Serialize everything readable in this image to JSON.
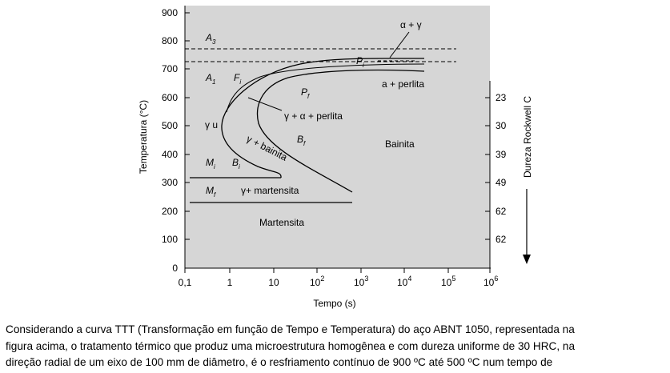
{
  "figure": {
    "colors": {
      "plot_bg": "#d6d6d6",
      "lines": "#000000"
    },
    "x_axis": {
      "label": "Tempo (s)",
      "scale": "log",
      "ticks": [
        {
          "base": "0,1",
          "exp": ""
        },
        {
          "base": "1",
          "exp": ""
        },
        {
          "base": "10",
          "exp": ""
        },
        {
          "base": "10",
          "exp": "2"
        },
        {
          "base": "10",
          "exp": "3"
        },
        {
          "base": "10",
          "exp": "4"
        },
        {
          "base": "10",
          "exp": "5"
        },
        {
          "base": "10",
          "exp": "6"
        }
      ]
    },
    "y_axis": {
      "label": "Temperatura (°C)",
      "range": [
        0,
        900
      ],
      "ticks": [
        "0",
        "100",
        "200",
        "300",
        "400",
        "500",
        "600",
        "700",
        "800",
        "900"
      ]
    },
    "right_axis": {
      "label": "Dureza Rockwell C",
      "ticks": [
        "23",
        "30",
        "39",
        "49",
        "62",
        "62"
      ]
    },
    "labels": {
      "a3_main": "A",
      "a3_sub": "3",
      "a1_main": "A",
      "a1_sub": "1",
      "fi_main": "F",
      "fi_sub": "i",
      "pi_main": "P",
      "pi_sub": "i",
      "pf_main": "P",
      "pf_sub": "f",
      "bf_main": "B",
      "bf_sub": "f",
      "bi_main": "B",
      "bi_sub": "i",
      "mi_main": "M",
      "mi_sub": "i",
      "mf_main": "M",
      "mf_sub": "f",
      "gamma_u": "γ u",
      "alpha_gamma": "α + γ",
      "a_perlita": "a + perlita",
      "gamma_alpha_perlita": "γ + α + perlita",
      "gamma_bainita": "γ + bainita",
      "bainita": "Bainita",
      "gamma_martensita": "γ+ martensita",
      "martensita": "Martensita"
    }
  },
  "caption": {
    "line1": "Considerando a curva TTT (Transformação em função de Tempo e Temperatura) do aço ABNT 1050, representada na",
    "line2": "figura acima, o tratamento térmico que produz uma microestrutura homogênea e com dureza uniforme de 30 HRC, na",
    "line3": "direção radial de um eixo de 100 mm de diâmetro, é o resfriamento contínuo de 900 ºC até 500 ºC num tempo de"
  }
}
